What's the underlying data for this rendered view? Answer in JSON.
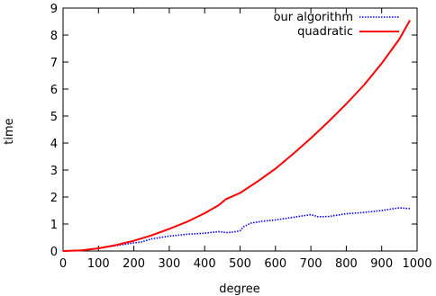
{
  "chart_data": {
    "type": "line",
    "title": "",
    "xlabel": "degree",
    "ylabel": "time",
    "xlim": [
      0,
      1000
    ],
    "ylim": [
      0,
      9
    ],
    "x_ticks": [
      0,
      100,
      200,
      300,
      400,
      500,
      600,
      700,
      800,
      900,
      1000
    ],
    "y_ticks": [
      0,
      1,
      2,
      3,
      4,
      5,
      6,
      7,
      8,
      9
    ],
    "grid": false,
    "legend_position": "top-right",
    "series": [
      {
        "name": "our algorithm",
        "color": "#0000ff",
        "style": "dotted",
        "points": [
          [
            0,
            0
          ],
          [
            50,
            0.03
          ],
          [
            100,
            0.1
          ],
          [
            150,
            0.2
          ],
          [
            200,
            0.3
          ],
          [
            220,
            0.33
          ],
          [
            250,
            0.45
          ],
          [
            300,
            0.55
          ],
          [
            350,
            0.62
          ],
          [
            400,
            0.66
          ],
          [
            440,
            0.72
          ],
          [
            460,
            0.68
          ],
          [
            480,
            0.7
          ],
          [
            500,
            0.75
          ],
          [
            510,
            0.9
          ],
          [
            530,
            1.03
          ],
          [
            560,
            1.1
          ],
          [
            600,
            1.15
          ],
          [
            650,
            1.25
          ],
          [
            690,
            1.33
          ],
          [
            700,
            1.35
          ],
          [
            720,
            1.27
          ],
          [
            750,
            1.28
          ],
          [
            800,
            1.38
          ],
          [
            850,
            1.43
          ],
          [
            900,
            1.5
          ],
          [
            950,
            1.6
          ],
          [
            980,
            1.57
          ]
        ]
      },
      {
        "name": "quadratic",
        "color": "#ff0000",
        "style": "solid",
        "points": [
          [
            0,
            0
          ],
          [
            50,
            0.02
          ],
          [
            100,
            0.1
          ],
          [
            150,
            0.22
          ],
          [
            200,
            0.38
          ],
          [
            250,
            0.58
          ],
          [
            300,
            0.82
          ],
          [
            350,
            1.08
          ],
          [
            400,
            1.4
          ],
          [
            440,
            1.7
          ],
          [
            460,
            1.92
          ],
          [
            500,
            2.15
          ],
          [
            550,
            2.58
          ],
          [
            600,
            3.05
          ],
          [
            650,
            3.6
          ],
          [
            700,
            4.18
          ],
          [
            750,
            4.8
          ],
          [
            800,
            5.45
          ],
          [
            850,
            6.15
          ],
          [
            900,
            6.95
          ],
          [
            950,
            7.85
          ],
          [
            980,
            8.55
          ]
        ]
      }
    ]
  }
}
